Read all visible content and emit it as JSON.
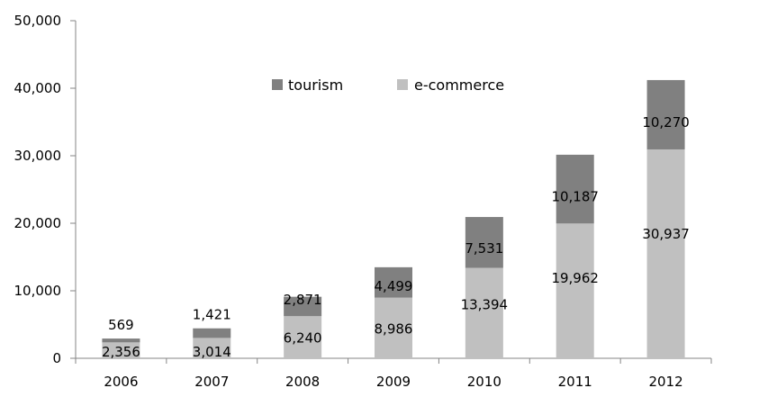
{
  "chart_data": {
    "type": "bar",
    "stacked": true,
    "categories": [
      "2006",
      "2007",
      "2008",
      "2009",
      "2010",
      "2011",
      "2012"
    ],
    "series": [
      {
        "name": "e-commerce",
        "color": "#c0c0c0",
        "values": [
          2356,
          3014,
          6240,
          8986,
          13394,
          19962,
          30937
        ]
      },
      {
        "name": "tourism",
        "color": "#808080",
        "values": [
          569,
          1421,
          2871,
          4499,
          7531,
          10187,
          10270
        ]
      }
    ],
    "data_labels": {
      "e-commerce": [
        "2,356",
        "3,014",
        "6,240",
        "8,986",
        "13,394",
        "19,962",
        "30,937"
      ],
      "tourism": [
        "569",
        "1,421",
        "2,871",
        "4,499",
        "7,531",
        "10,187",
        "10,270"
      ]
    },
    "legend_order": [
      "tourism",
      "e-commerce"
    ],
    "legend_position": "top-center",
    "ylim": [
      0,
      50000
    ],
    "yticks": [
      0,
      10000,
      20000,
      30000,
      40000,
      50000
    ],
    "ytick_labels": [
      "0",
      "10,000",
      "20,000",
      "30,000",
      "40,000",
      "50,000"
    ],
    "grid": false,
    "title": "",
    "xlabel": "",
    "ylabel": ""
  }
}
